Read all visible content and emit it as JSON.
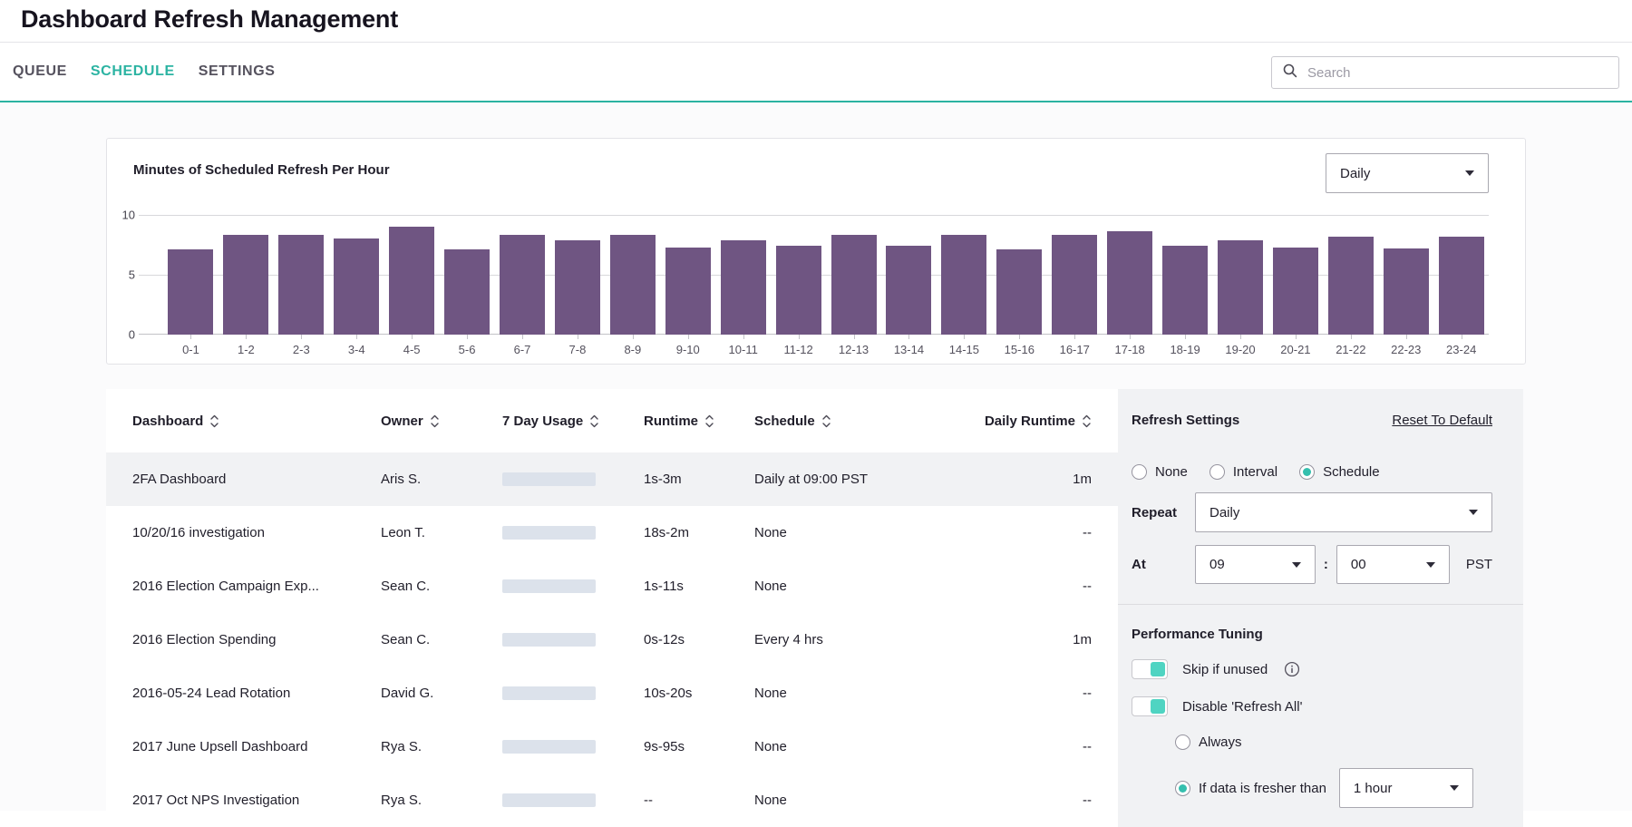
{
  "page": {
    "title": "Dashboard Refresh Management"
  },
  "tabs": [
    {
      "label": "QUEUE",
      "active": false
    },
    {
      "label": "SCHEDULE",
      "active": true
    },
    {
      "label": "SETTINGS",
      "active": false
    }
  ],
  "search": {
    "placeholder": "Search"
  },
  "chart": {
    "title": "Minutes of Scheduled Refresh Per Hour",
    "range_selector": "Daily"
  },
  "chart_data": {
    "type": "bar",
    "title": "Minutes of Scheduled Refresh Per Hour",
    "categories": [
      "0-1",
      "1-2",
      "2-3",
      "3-4",
      "4-5",
      "5-6",
      "6-7",
      "7-8",
      "8-9",
      "9-10",
      "10-11",
      "11-12",
      "12-13",
      "13-14",
      "14-15",
      "15-16",
      "16-17",
      "17-18",
      "18-19",
      "19-20",
      "20-21",
      "21-22",
      "22-23",
      "23-24"
    ],
    "values": [
      7.1,
      8.3,
      8.3,
      8.0,
      9.0,
      7.1,
      8.3,
      7.9,
      8.3,
      7.3,
      7.9,
      7.4,
      8.3,
      7.4,
      8.3,
      7.1,
      8.3,
      8.6,
      7.4,
      7.9,
      7.3,
      8.2,
      7.2,
      8.2
    ],
    "xlabel": "",
    "ylabel": "",
    "ylim": [
      0,
      10
    ],
    "yticks": [
      0,
      5,
      10
    ],
    "grid": true,
    "legend_position": "none",
    "bar_color": "#6f5582"
  },
  "table": {
    "columns": [
      "Dashboard",
      "Owner",
      "7 Day Usage",
      "Runtime",
      "Schedule",
      "Daily Runtime"
    ],
    "rows": [
      {
        "dashboard": "2FA Dashboard",
        "owner": "Aris S.",
        "runtime": "1s-3m",
        "schedule": "Daily at 09:00 PST",
        "daily_runtime": "1m",
        "selected": true
      },
      {
        "dashboard": "10/20/16 investigation",
        "owner": "Leon T.",
        "runtime": "18s-2m",
        "schedule": "None",
        "daily_runtime": "--",
        "selected": false
      },
      {
        "dashboard": "2016 Election Campaign Exp...",
        "owner": "Sean C.",
        "runtime": "1s-11s",
        "schedule": "None",
        "daily_runtime": "--",
        "selected": false
      },
      {
        "dashboard": "2016 Election Spending",
        "owner": "Sean C.",
        "runtime": "0s-12s",
        "schedule": "Every 4 hrs",
        "daily_runtime": "1m",
        "selected": false
      },
      {
        "dashboard": "2016-05-24 Lead Rotation",
        "owner": "David G.",
        "runtime": "10s-20s",
        "schedule": "None",
        "daily_runtime": "--",
        "selected": false
      },
      {
        "dashboard": "2017 June Upsell Dashboard",
        "owner": "Rya S.",
        "runtime": "9s-95s",
        "schedule": "None",
        "daily_runtime": "--",
        "selected": false
      },
      {
        "dashboard": "2017 Oct NPS Investigation",
        "owner": "Rya S.",
        "runtime": "--",
        "schedule": "None",
        "daily_runtime": "--",
        "selected": false
      }
    ]
  },
  "settings": {
    "title": "Refresh Settings",
    "reset_link": "Reset To Default",
    "mode_options": [
      {
        "label": "None",
        "selected": false
      },
      {
        "label": "Interval",
        "selected": false
      },
      {
        "label": "Schedule",
        "selected": true
      }
    ],
    "repeat_label": "Repeat",
    "repeat_value": "Daily",
    "at_label": "At",
    "hour_value": "09",
    "colon": ":",
    "minute_value": "00",
    "timezone": "PST",
    "performance": {
      "title": "Performance Tuning",
      "skip_if_unused": {
        "label": "Skip if unused",
        "enabled": true
      },
      "disable_refresh_all": {
        "label": "Disable 'Refresh All'",
        "enabled": true
      },
      "refresh_options": [
        {
          "label": "Always",
          "selected": false
        },
        {
          "label": "If data is fresher than",
          "selected": true
        }
      ],
      "fresher_value": "1 hour"
    }
  },
  "colors": {
    "accent": "#2bb3a2",
    "toggle_on": "#4fd4c2",
    "radio_selected": "#35bfae",
    "bar": "#6f5582",
    "usage_bar": "#dce2eb",
    "selected_row": "#f1f2f4",
    "panel_bg": "#f1f2f4"
  }
}
